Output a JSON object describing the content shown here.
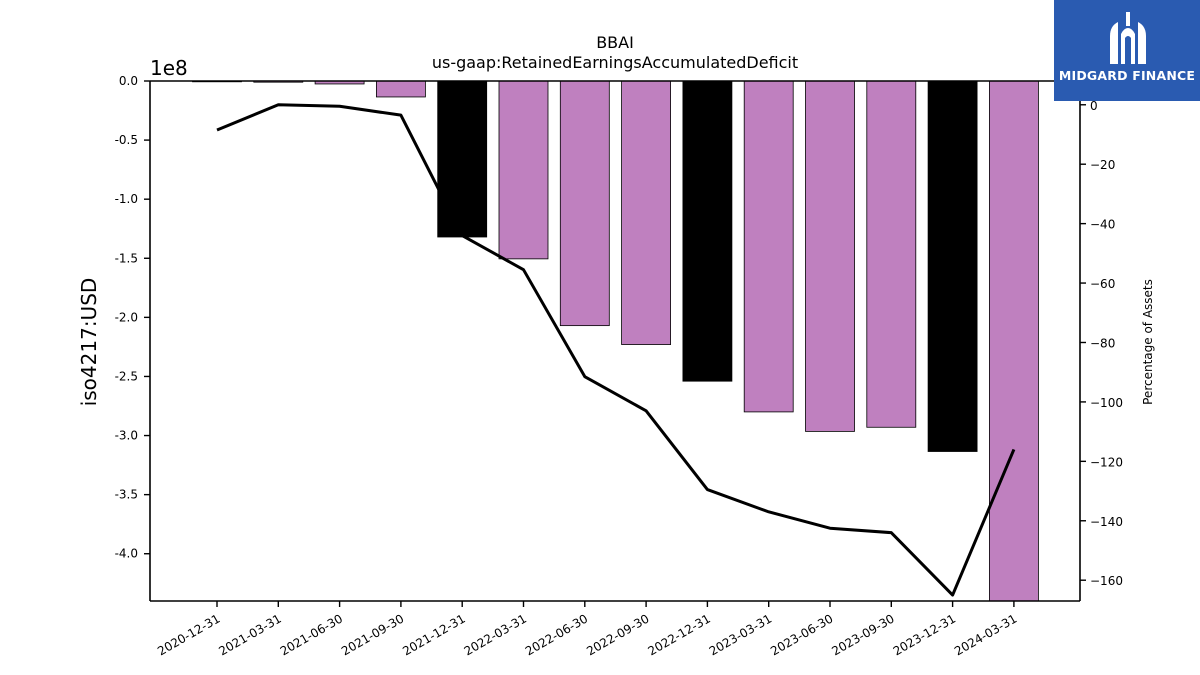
{
  "chart_data": {
    "type": "bar",
    "title": "BBAI",
    "subtitle": "us-gaap:RetainedEarningsAccumulatedDeficit",
    "ylabel": "iso4217:USD",
    "ylabel_right": "Percentage of Assets",
    "y_offset_label": "1e8",
    "categories": [
      "2020-12-31",
      "2021-03-31",
      "2021-06-30",
      "2021-09-30",
      "2021-12-31",
      "2022-03-31",
      "2022-06-30",
      "2022-09-30",
      "2022-12-31",
      "2023-03-31",
      "2023-06-30",
      "2023-09-30",
      "2023-12-31",
      "2024-03-31"
    ],
    "bar_values": [
      0,
      -1000000,
      -2500000,
      -13500000,
      -132000000,
      -150500000,
      -207000000,
      -223000000,
      -254000000,
      -280000000,
      -296500000,
      -293000000,
      -313500000,
      -445000000
    ],
    "bar_colors": [
      "#bf80bf",
      "#bf80bf",
      "#bf80bf",
      "#bf80bf",
      "#000000",
      "#bf80bf",
      "#bf80bf",
      "#bf80bf",
      "#000000",
      "#bf80bf",
      "#bf80bf",
      "#bf80bf",
      "#000000",
      "#bf80bf"
    ],
    "line_series": {
      "axis": "right",
      "values": [
        -8.5,
        0,
        -0.5,
        -3.5,
        -44,
        -55.5,
        -91.5,
        -103,
        -129.5,
        -137,
        -142.5,
        -144,
        -165,
        -116
      ]
    },
    "ylim_left": [
      -440000000,
      0
    ],
    "yticks_left": [
      "0.0",
      "-0.5",
      "-1.0",
      "-1.5",
      "-2.0",
      "-2.5",
      "-3.0",
      "-3.5",
      "-4.0"
    ],
    "yticks_left_values": [
      0,
      -50000000,
      -100000000,
      -150000000,
      -200000000,
      -250000000,
      -300000000,
      -350000000,
      -400000000
    ],
    "ylim_right": [
      -167,
      8
    ],
    "yticks_right": [
      "0",
      "−20",
      "−40",
      "−60",
      "−80",
      "−100",
      "−120",
      "−140",
      "−160"
    ],
    "yticks_right_values": [
      0,
      -20,
      -40,
      -60,
      -80,
      -100,
      -120,
      -140,
      -160
    ],
    "grid": false
  },
  "logo": {
    "text": "MIDGARD FINANCE",
    "color": "#2a5bb1"
  }
}
